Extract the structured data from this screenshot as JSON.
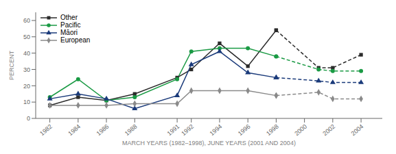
{
  "chart_data": {
    "type": "line",
    "xlabel": "MARCH YEARS (1982–1998), JUNE YEARS (2001 AND 2004)",
    "ylabel": "PERCENT",
    "xlim": [
      1981,
      2005.5
    ],
    "xticks": [
      1982,
      1984,
      1986,
      1988,
      1991,
      1992,
      1994,
      1996,
      1998,
      2000,
      2002,
      2004
    ],
    "ylim": [
      0,
      65
    ],
    "yticks": [
      0,
      10,
      20,
      30,
      40,
      50,
      60
    ],
    "grid": false,
    "legend": "upper left",
    "series": [
      {
        "name": "Other",
        "color": "#2b2b2b",
        "marker": "square",
        "line_style": "solid",
        "x": [
          1982,
          1984,
          1986,
          1988,
          1991,
          1992,
          1994,
          1996,
          1998
        ],
        "values": [
          8,
          13,
          11,
          15,
          25,
          30,
          46,
          32,
          54
        ]
      },
      {
        "name": "Pacific",
        "color": "#1a9a44",
        "marker": "circle",
        "line_style": "solid",
        "x": [
          1982,
          1984,
          1986,
          1988,
          1991,
          1992,
          1994,
          1996,
          1998
        ],
        "values": [
          13,
          24,
          11,
          13,
          24,
          41,
          43,
          43,
          38
        ]
      },
      {
        "name": "Māori",
        "color": "#1a3a7a",
        "marker": "triangle",
        "line_style": "solid",
        "x": [
          1982,
          1984,
          1986,
          1988,
          1991,
          1992,
          1994,
          1996,
          1998
        ],
        "values": [
          12,
          15,
          12,
          6,
          14,
          33,
          41,
          28,
          25
        ]
      },
      {
        "name": "European",
        "color": "#8a8a8a",
        "marker": "diamond",
        "line_style": "solid",
        "x": [
          1982,
          1984,
          1986,
          1988,
          1991,
          1992,
          1994,
          1996,
          1998
        ],
        "values": [
          8,
          8,
          8,
          9,
          9,
          17,
          17,
          17,
          14
        ]
      },
      {
        "name": "Other",
        "color": "#2b2b2b",
        "marker": "square",
        "line_style": "dashed",
        "x": [
          1998,
          2001,
          2002,
          2004
        ],
        "values": [
          54,
          31,
          31,
          39
        ]
      },
      {
        "name": "Pacific",
        "color": "#1a9a44",
        "marker": "circle",
        "line_style": "dashed",
        "x": [
          1998,
          2001,
          2002,
          2004
        ],
        "values": [
          38,
          30,
          29,
          29
        ]
      },
      {
        "name": "Māori",
        "color": "#1a3a7a",
        "marker": "triangle",
        "line_style": "dashed",
        "x": [
          1998,
          2001,
          2002,
          2004
        ],
        "values": [
          25,
          23,
          22,
          22
        ]
      },
      {
        "name": "European",
        "color": "#8a8a8a",
        "marker": "diamond",
        "line_style": "dashed",
        "x": [
          1998,
          2001,
          2002,
          2004
        ],
        "values": [
          14,
          16,
          12,
          12
        ]
      }
    ]
  }
}
